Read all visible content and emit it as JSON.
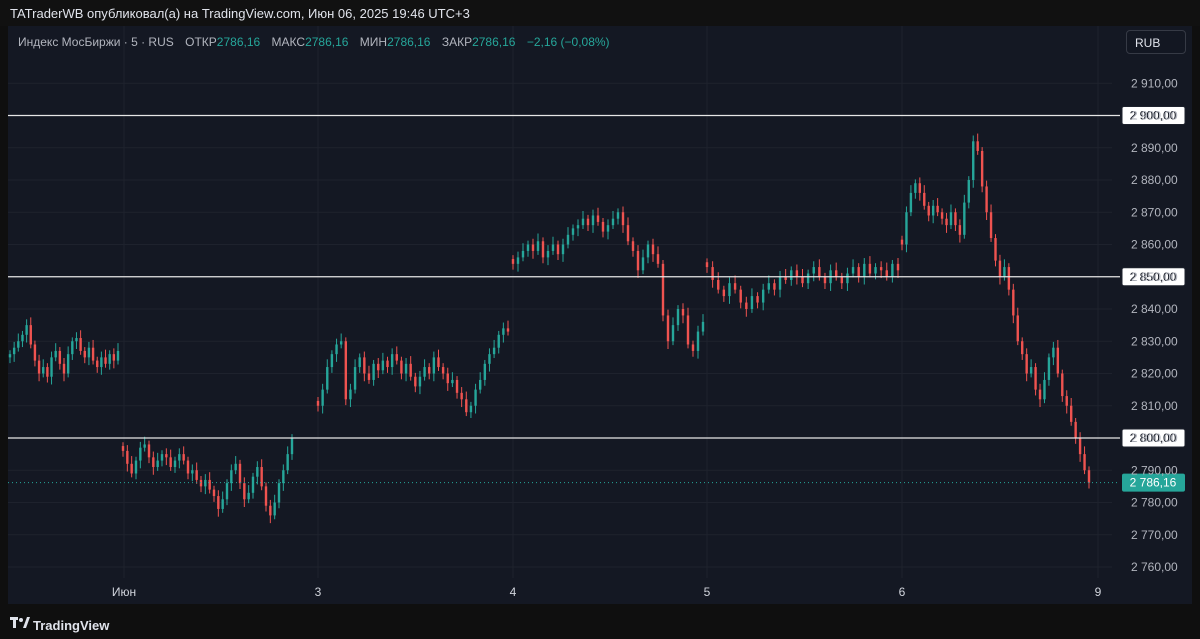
{
  "header": {
    "publisher_text": "TATraderWB опубликовал(а) на TradingView.com, Июн 06, 2025 19:46 UTC+3"
  },
  "legend": {
    "symbol": "Индекс МосБиржи · 5 · RUS",
    "open_label": "ОТКР",
    "open_value": "2786,16",
    "high_label": "МАКС",
    "high_value": "2786,16",
    "low_label": "МИН",
    "low_value": "2786,16",
    "close_label": "ЗАКР",
    "close_value": "2786,16",
    "change": "−2,16 (−0,08%)"
  },
  "currency_button": "RUB",
  "footer": {
    "brand": "TradingView"
  },
  "colors": {
    "up": "#26a69a",
    "down": "#ef5350",
    "background": "#141823",
    "grid": "#1e222d",
    "level_line": "#e6e6e6"
  },
  "chart_data": {
    "type": "candlestick",
    "title": "Индекс МосБиржи · 5 · RUS",
    "xlabel": "",
    "ylabel": "",
    "ylim": [
      2755,
      2915
    ],
    "y_ticks": [
      2760,
      2770,
      2780,
      2790,
      2800,
      2810,
      2820,
      2830,
      2840,
      2850,
      2860,
      2870,
      2880,
      2890,
      2900,
      2910
    ],
    "y_tick_labels": [
      "2 760,00",
      "2 770,00",
      "2 780,00",
      "2 790,00",
      "2 800,00",
      "2 810,00",
      "2 820,00",
      "2 830,00",
      "2 840,00",
      "2 850,00",
      "2 860,00",
      "2 870,00",
      "2 880,00",
      "2 890,00",
      "2 900,00",
      "2 910,00"
    ],
    "x_labels": [
      "Июн",
      "3",
      "4",
      "5",
      "6",
      "9"
    ],
    "horizontal_levels": [
      {
        "value": 2900,
        "label": "2 900,00"
      },
      {
        "value": 2850,
        "label": "2 850,00"
      },
      {
        "value": 2800,
        "label": "2 800,00"
      }
    ],
    "last_price": {
      "value": 2786.16,
      "label": "2 786,16"
    },
    "grid": true,
    "series": [
      {
        "session": "Июн",
        "closes": [
          2826,
          2828,
          2830,
          2832,
          2835,
          2829,
          2824,
          2820,
          2822,
          2819,
          2825,
          2827,
          2823,
          2820,
          2826,
          2830,
          2831,
          2827,
          2825,
          2828,
          2824,
          2822,
          2825,
          2823,
          2826,
          2824,
          2827
        ]
      },
      {
        "session": "2",
        "closes": [
          2796,
          2792,
          2789,
          2793,
          2797,
          2798,
          2794,
          2791,
          2793,
          2795,
          2794,
          2791,
          2793,
          2795,
          2793,
          2789,
          2790,
          2787,
          2785,
          2787,
          2784,
          2782,
          2778,
          2781,
          2786,
          2790,
          2792,
          2786,
          2781,
          2783,
          2788,
          2791,
          2785,
          2779,
          2776,
          2780,
          2786,
          2790,
          2795,
          2800
        ]
      },
      {
        "session": "3",
        "closes": [
          2810,
          2815,
          2822,
          2826,
          2829,
          2830,
          2812,
          2815,
          2822,
          2825,
          2820,
          2818,
          2823,
          2821,
          2824,
          2822,
          2826,
          2824,
          2820,
          2823,
          2819,
          2816,
          2819,
          2822,
          2820,
          2825,
          2822,
          2820,
          2817,
          2818,
          2814,
          2812,
          2808,
          2810,
          2815,
          2818,
          2823,
          2826,
          2828,
          2832,
          2834,
          2833
        ]
      },
      {
        "session": "4",
        "closes": [
          2854,
          2856,
          2858,
          2860,
          2858,
          2861,
          2856,
          2858,
          2860,
          2857,
          2860,
          2863,
          2865,
          2866,
          2868,
          2866,
          2869,
          2867,
          2864,
          2866,
          2868,
          2870,
          2866,
          2861,
          2858,
          2852,
          2856,
          2860,
          2857,
          2854,
          2838,
          2830,
          2835,
          2840,
          2838,
          2829,
          2827,
          2833,
          2836
        ]
      },
      {
        "session": "5",
        "closes": [
          2853,
          2849,
          2846,
          2844,
          2848,
          2846,
          2842,
          2840,
          2844,
          2842,
          2846,
          2848,
          2846,
          2850,
          2849,
          2852,
          2850,
          2848,
          2851,
          2853,
          2850,
          2848,
          2852,
          2850,
          2848,
          2851,
          2853,
          2850,
          2854,
          2851,
          2853,
          2852,
          2850,
          2854,
          2852
        ]
      },
      {
        "session": "6",
        "closes": [
          2860,
          2870,
          2876,
          2879,
          2876,
          2872,
          2869,
          2872,
          2870,
          2868,
          2866,
          2870,
          2866,
          2863,
          2873,
          2880,
          2892,
          2889,
          2878,
          2870,
          2862,
          2855,
          2850,
          2853,
          2846,
          2838,
          2830,
          2826,
          2820,
          2822,
          2815,
          2812,
          2818,
          2825,
          2828,
          2820,
          2813,
          2810,
          2805,
          2800,
          2795,
          2790,
          2786.16
        ]
      }
    ]
  }
}
